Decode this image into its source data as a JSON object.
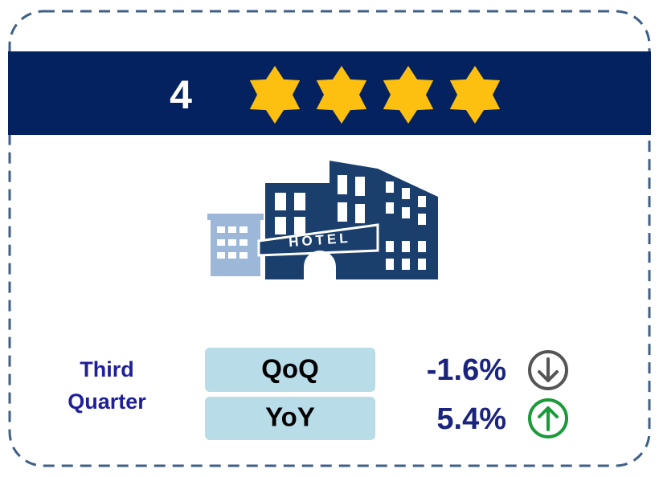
{
  "header": {
    "rating": 4
  },
  "period": "Third Quarter",
  "sign": "HOTEL",
  "metrics": [
    {
      "label": "QoQ",
      "value": "-1.6%"
    },
    {
      "label": "YoY",
      "value": "5.4%"
    }
  ]
}
